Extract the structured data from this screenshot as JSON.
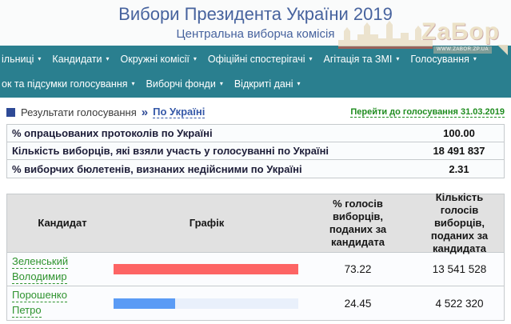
{
  "header": {
    "title": "Вибори Президента України 2019",
    "subtitle": "Центральна виборча комісія"
  },
  "watermark": {
    "logo_text": "ZаБор",
    "site": "WWW.ZABOR.ZP.UA"
  },
  "icons": {
    "dropdown_arrow": "▾"
  },
  "nav": {
    "row1": [
      {
        "label": "ільниці"
      },
      {
        "label": "Кандидати"
      },
      {
        "label": "Окружні комісії"
      },
      {
        "label": "Офіційні спостерігачі"
      },
      {
        "label": "Агітація та ЗМІ"
      },
      {
        "label": "Голосування"
      }
    ],
    "row2": [
      {
        "label": "ок та підсумки голосування"
      },
      {
        "label": "Виборчі фонди"
      },
      {
        "label": "Відкриті дані"
      }
    ]
  },
  "breadcrumb": {
    "section": "Результати голосування",
    "separator": "»",
    "current": "По Україні",
    "goto_link": "Перейти до голосування 31.03.2019"
  },
  "stats": [
    {
      "label": "% опрацьованих протоколів по Україні",
      "value": "100.00"
    },
    {
      "label": "Кількість виборців, які взяли участь у голосуванні по Україні",
      "value": "18 491 837"
    },
    {
      "label": "% виборчих бюлетенів, визнаних недійсними по Україні",
      "value": "2.31"
    }
  ],
  "results_table": {
    "headers": {
      "candidate": "Кандидат",
      "graph": "Графік",
      "percent": "% голосів виборців, поданих за кандидата",
      "votes": "Кількість голосів виборців, поданих за кандидата"
    },
    "rows": [
      {
        "name_line1": "Зеленський",
        "name_line2": "Володимир",
        "percent": "73.22",
        "votes": "13 541 528",
        "bar_color": "#fd6464",
        "bar_width_pct": 100
      },
      {
        "name_line1": "Порошенко",
        "name_line2": "Петро",
        "percent": "24.45",
        "votes": "4 522 320",
        "bar_color": "#5a9bf5",
        "bar_width_pct": 33.4
      }
    ]
  },
  "colors": {
    "nav_teal": "#2a7f8f",
    "title_blue": "#47639e",
    "link_blue": "#3558a8",
    "green_link": "#1e8c1e",
    "candidate_green": "#2e932e",
    "bar_track": "#e9f0fb",
    "zelensky_bar": "#fd6464",
    "poroshenko_bar": "#5a9bf5"
  }
}
